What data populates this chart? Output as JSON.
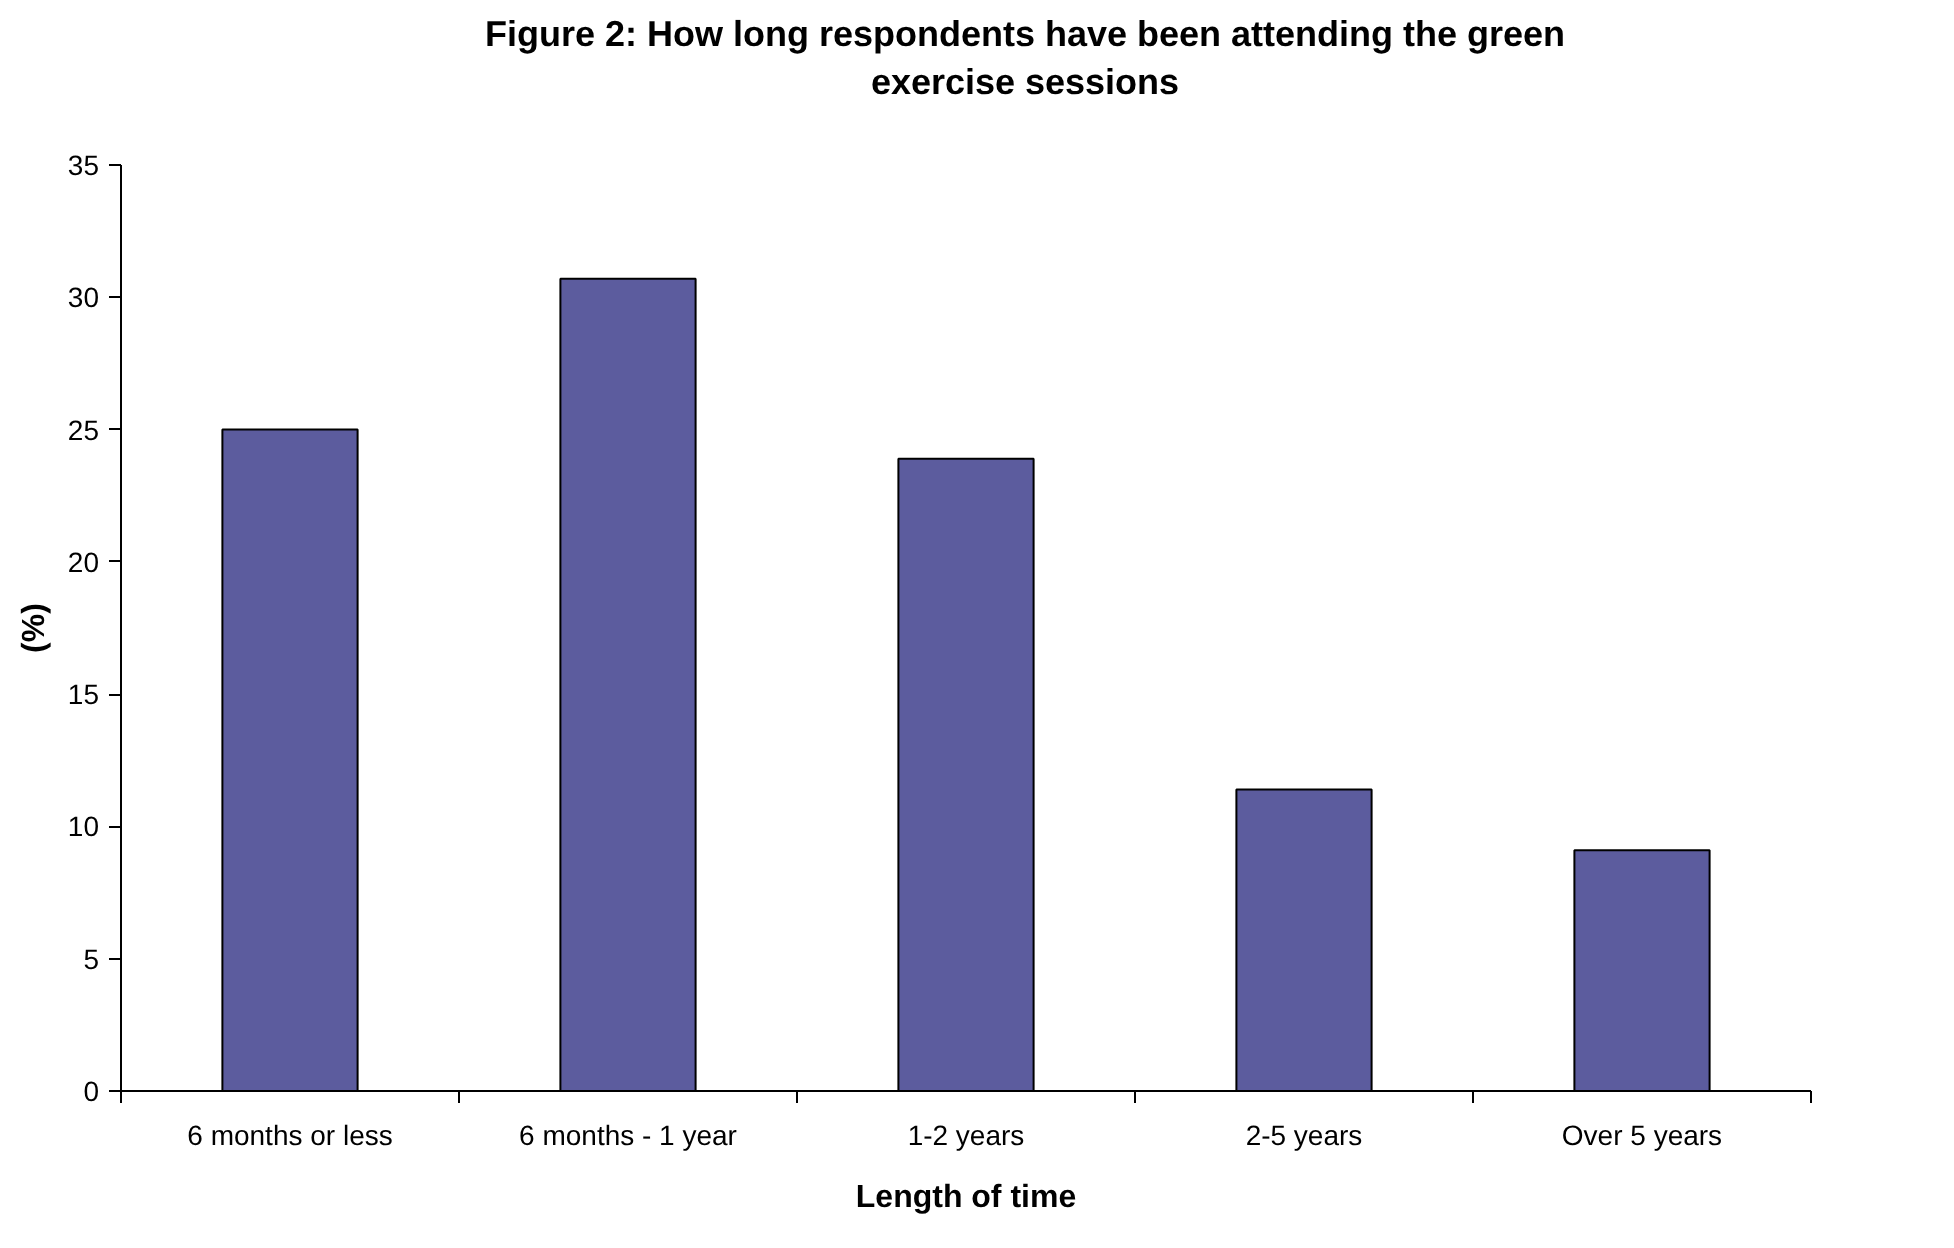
{
  "chart_data": {
    "type": "bar",
    "title": "Figure 2: How long respondents have been attending the green\nexercise sessions",
    "xlabel": "Length of time",
    "ylabel": "(%)",
    "categories": [
      "6 months or less",
      "6 months - 1 year",
      "1-2 years",
      "2-5 years",
      "Over 5 years"
    ],
    "values": [
      25.0,
      30.7,
      23.9,
      11.4,
      9.1
    ],
    "color": "#5c5c9e",
    "ylim": [
      0,
      35
    ],
    "yticks": [
      0,
      5,
      10,
      15,
      20,
      25,
      30,
      35
    ],
    "grid": false
  }
}
